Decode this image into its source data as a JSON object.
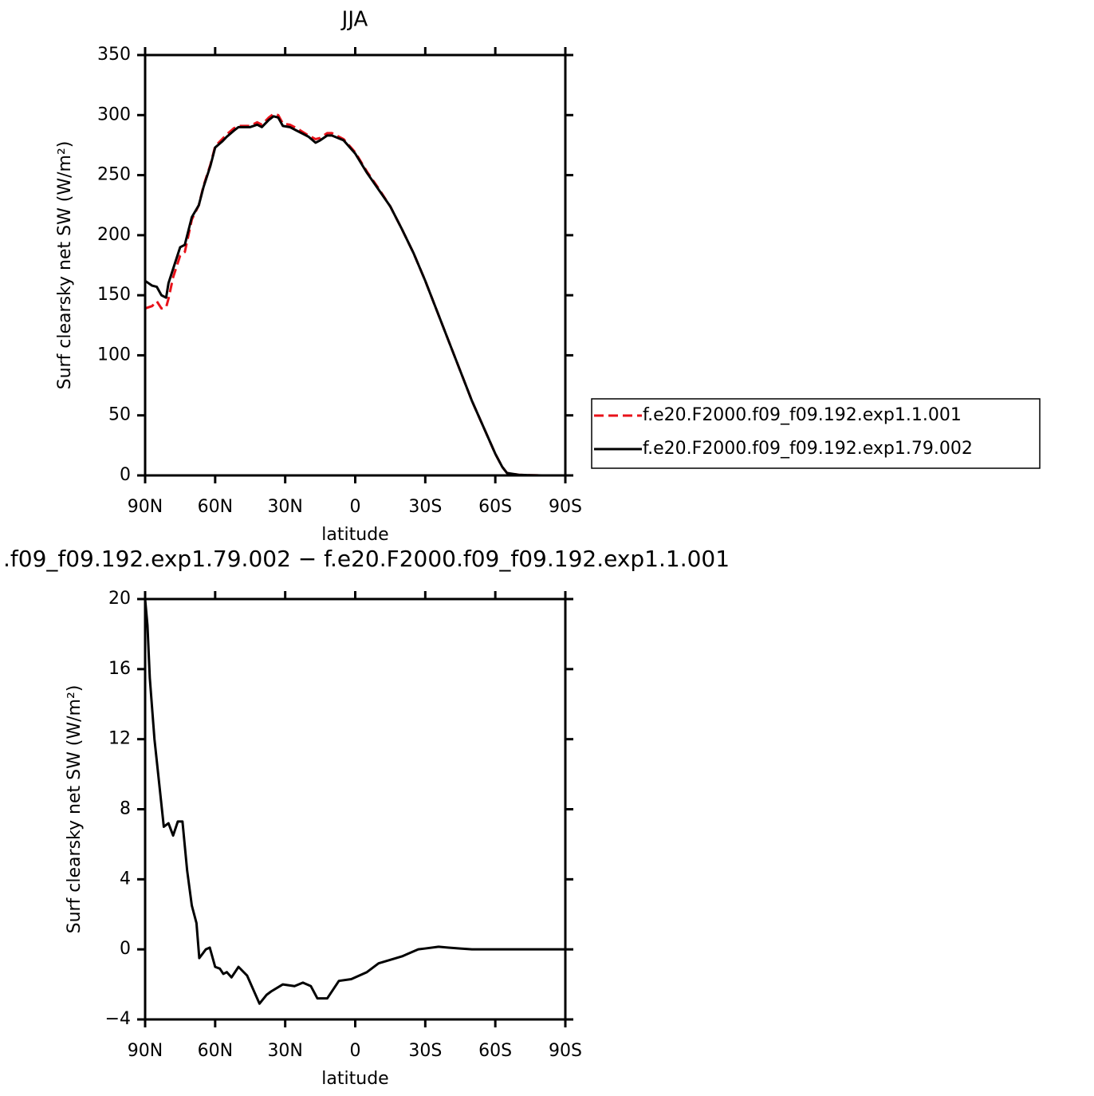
{
  "chart_data": [
    {
      "type": "line",
      "title": "JJA",
      "x_label": "latitude",
      "y_label": "Surf clearsky net SW (W/m²)",
      "x": [
        90,
        87,
        85,
        83,
        81,
        80,
        78,
        75,
        73,
        70,
        67,
        65,
        62,
        60,
        57,
        55,
        52,
        50,
        45,
        42,
        40,
        37,
        35,
        33,
        31,
        28,
        25,
        20,
        17,
        15,
        12,
        10,
        5,
        0,
        -5,
        -10,
        -15,
        -20,
        -25,
        -30,
        -35,
        -40,
        -45,
        -50,
        -55,
        -60,
        -63,
        -65,
        -70,
        -75,
        -80,
        -85,
        -90
      ],
      "series": [
        {
          "name": "f.e20.F2000.f09_f09.192.exp1.1.001",
          "color": "#e8121a",
          "linestyle": "dashed",
          "values": [
            139,
            141,
            145,
            139,
            140,
            147,
            165,
            183,
            186,
            213,
            225,
            241,
            259,
            274,
            280,
            284,
            289,
            291,
            291,
            294,
            292,
            298,
            301,
            300,
            293,
            292,
            289,
            283,
            280,
            281,
            285,
            285,
            280,
            269,
            253,
            239,
            224,
            205,
            185,
            162,
            137,
            112,
            87,
            62,
            40,
            18,
            7,
            2,
            0.5,
            0.2,
            0,
            0,
            0
          ]
        },
        {
          "name": "f.e20.F2000.f09_f09.192.exp1.79.002",
          "color": "#000000",
          "linestyle": "solid",
          "values": [
            162,
            158,
            157,
            150,
            148,
            160,
            172,
            190,
            192,
            215,
            225,
            240,
            258,
            273,
            278,
            282,
            287,
            290,
            290,
            292,
            290,
            296,
            299,
            298,
            291,
            290,
            287,
            282,
            277,
            279,
            283,
            283,
            279,
            268,
            252,
            238,
            224,
            205,
            185,
            162,
            137,
            112,
            87,
            62,
            40,
            18,
            7,
            2,
            0.5,
            0.2,
            0,
            0,
            0
          ]
        }
      ],
      "xlim": [
        90,
        -90
      ],
      "xticks": [
        {
          "value": 90,
          "label": "90N"
        },
        {
          "value": 60,
          "label": "60N"
        },
        {
          "value": 30,
          "label": "30N"
        },
        0,
        {
          "value": -30,
          "label": "30S"
        },
        {
          "value": -60,
          "label": "60S"
        },
        {
          "value": -90,
          "label": "90S"
        }
      ],
      "ylim": [
        0,
        350
      ],
      "yticks": [
        0,
        50,
        100,
        150,
        200,
        250,
        300,
        350
      ],
      "legend": "right"
    },
    {
      "type": "line",
      "title": ".f09_f09.192.exp1.79.002 − f.e20.F2000.f09_f09.192.exp1.1.001",
      "x_label": "latitude",
      "y_label": "Surf clearsky net SW (W/m²)",
      "x": [
        90,
        89,
        88,
        86,
        84,
        82,
        80,
        78,
        76,
        74,
        72,
        70,
        68,
        66.8,
        64,
        62.3,
        60,
        58,
        56.5,
        55,
        53,
        50,
        46.3,
        43,
        41,
        38,
        36,
        31,
        26,
        22.4,
        19,
        16.2,
        12,
        7,
        1.7,
        -5,
        -10,
        -15,
        -20,
        -27,
        -30,
        -35.7,
        -40,
        -45,
        -50,
        -60,
        -70,
        -80,
        -90
      ],
      "series": [
        {
          "name": null,
          "color": "#000000",
          "linestyle": "solid",
          "values": [
            20,
            18.5,
            15.5,
            12,
            9.5,
            7,
            7.2,
            6.5,
            7.3,
            7.3,
            4.5,
            2.5,
            1.5,
            -0.5,
            0,
            0.1,
            -1.0,
            -1.1,
            -1.4,
            -1.3,
            -1.6,
            -1.0,
            -1.5,
            -2.5,
            -3.1,
            -2.6,
            -2.4,
            -2.0,
            -2.1,
            -1.9,
            -2.1,
            -2.8,
            -2.8,
            -1.8,
            -1.7,
            -1.3,
            -0.8,
            -0.6,
            -0.4,
            0,
            0.05,
            0.15,
            0.1,
            0.05,
            0,
            0,
            0,
            0,
            0
          ]
        }
      ],
      "xlim": [
        90,
        -90
      ],
      "xticks": [
        {
          "value": 90,
          "label": "90N"
        },
        {
          "value": 60,
          "label": "60N"
        },
        {
          "value": 30,
          "label": "30N"
        },
        0,
        {
          "value": -30,
          "label": "30S"
        },
        {
          "value": -60,
          "label": "60S"
        },
        {
          "value": -90,
          "label": "90S"
        }
      ],
      "ylim": [
        -4,
        20
      ],
      "yticks": [
        {
          "value": -4,
          "label": "−4"
        },
        0,
        4,
        8,
        12,
        16,
        20
      ]
    }
  ]
}
